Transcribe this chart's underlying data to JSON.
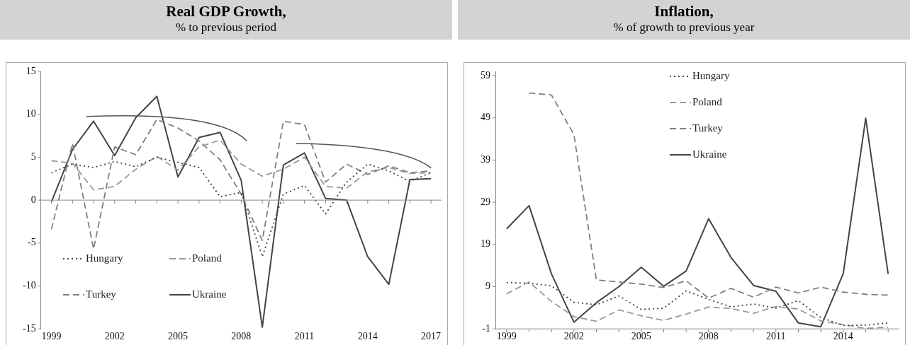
{
  "chart_data": [
    {
      "type": "line",
      "title": "Real GDP Growth,",
      "subtitle": "% to previous period",
      "x": [
        1999,
        2000,
        2001,
        2002,
        2003,
        2004,
        2005,
        2006,
        2007,
        2008,
        2009,
        2010,
        2011,
        2012,
        2013,
        2014,
        2015,
        2016,
        2017
      ],
      "xlim": [
        1998.5,
        2017.5
      ],
      "xticks": [
        1999,
        2002,
        2005,
        2008,
        2011,
        2014,
        2017
      ],
      "ylim": [
        -15,
        15
      ],
      "yticks": [
        -15,
        -10,
        -5,
        0,
        5,
        10,
        15
      ],
      "grid": false,
      "ref_lines": [
        {
          "axis": "y",
          "value": 0
        }
      ],
      "legend": "bottom left",
      "marker": "none",
      "series": [
        {
          "name": "Hungary",
          "color": "#444444",
          "line_style": "dotted",
          "values": [
            3.2,
            4.2,
            3.8,
            4.5,
            3.9,
            5.0,
            4.4,
            3.8,
            0.4,
            0.9,
            -6.6,
            0.7,
            1.7,
            -1.6,
            2.1,
            4.2,
            3.4,
            2.2,
            3.2
          ]
        },
        {
          "name": "Poland",
          "color": "#999999",
          "line_style": "dashed",
          "values": [
            4.6,
            4.3,
            1.2,
            1.6,
            3.6,
            5.1,
            3.5,
            6.2,
            7.0,
            4.2,
            2.8,
            3.6,
            5.0,
            1.6,
            1.4,
            3.3,
            3.8,
            3.1,
            3.2
          ]
        },
        {
          "name": "Turkey",
          "color": "#808080",
          "line_style": "dashed",
          "values": [
            -3.4,
            6.6,
            -5.7,
            6.2,
            5.3,
            9.4,
            8.4,
            6.9,
            4.7,
            0.7,
            -4.7,
            9.2,
            8.8,
            2.1,
            4.2,
            3.0,
            4.0,
            3.2,
            3.4
          ]
        },
        {
          "name": "Ukraine",
          "color": "#444444",
          "line_style": "solid",
          "values": [
            -0.2,
            5.9,
            9.2,
            5.2,
            9.6,
            12.1,
            2.7,
            7.3,
            7.9,
            2.3,
            -14.8,
            4.1,
            5.5,
            0.2,
            0.0,
            -6.6,
            -9.8,
            2.4,
            2.5
          ]
        }
      ]
    },
    {
      "type": "line",
      "title": "Inflation,",
      "subtitle": "% of growth to previous year",
      "x": [
        1999,
        2000,
        2001,
        2002,
        2003,
        2004,
        2005,
        2006,
        2007,
        2008,
        2009,
        2010,
        2011,
        2012,
        2013,
        2014,
        2015,
        2016
      ],
      "xlim": [
        1998.5,
        2016.5
      ],
      "xticks": [
        1999,
        2002,
        2005,
        2008,
        2011,
        2014
      ],
      "ylim": [
        -1,
        60
      ],
      "yticks": [
        -1,
        9,
        19,
        29,
        39,
        49,
        59
      ],
      "grid": false,
      "legend": "top",
      "marker": "none",
      "series": [
        {
          "name": "Hungary",
          "color": "#444444",
          "line_style": "dotted",
          "values": [
            10.0,
            9.8,
            9.2,
            5.3,
            4.7,
            6.8,
            3.6,
            3.9,
            8.0,
            6.0,
            4.2,
            4.9,
            3.9,
            5.7,
            1.7,
            -0.2,
            -0.1,
            0.4
          ]
        },
        {
          "name": "Poland",
          "color": "#999999",
          "line_style": "dashed",
          "values": [
            7.3,
            10.1,
            5.5,
            1.9,
            0.8,
            3.5,
            2.1,
            1.0,
            2.5,
            4.2,
            3.8,
            2.7,
            4.3,
            3.7,
            0.9,
            0.0,
            -0.9,
            -0.6
          ]
        },
        {
          "name": "Turkey",
          "color": "#808080",
          "line_style": "dashed",
          "values": [
            null,
            54.9,
            54.4,
            45.0,
            10.6,
            10.1,
            9.6,
            8.8,
            10.4,
            6.3,
            8.6,
            6.5,
            8.9,
            7.5,
            8.9,
            7.7,
            7.2,
            7.0
          ]
        },
        {
          "name": "Ukraine",
          "color": "#444444",
          "line_style": "solid",
          "values": [
            22.7,
            28.2,
            12.0,
            0.6,
            5.2,
            9.0,
            13.6,
            9.1,
            12.7,
            25.1,
            15.9,
            9.3,
            7.9,
            0.4,
            -0.5,
            12.1,
            48.9,
            12.0
          ]
        }
      ]
    }
  ]
}
